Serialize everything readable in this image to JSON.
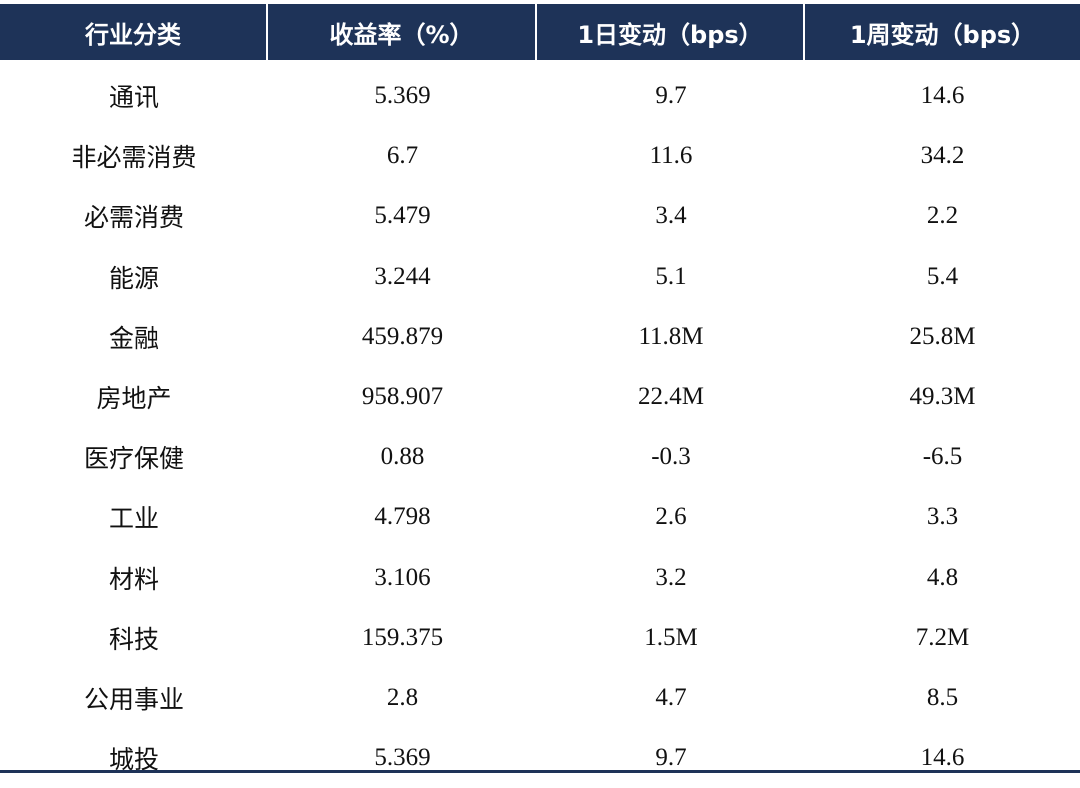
{
  "chart_data": {
    "type": "table",
    "columns": [
      "行业分类",
      "收益率（%）",
      "1日变动（bps）",
      "1周变动（bps）"
    ],
    "rows": [
      {
        "category": "通讯",
        "yield": "5.369",
        "change_1d": "9.7",
        "change_1w": "14.6"
      },
      {
        "category": "非必需消费",
        "yield": "6.7",
        "change_1d": "11.6",
        "change_1w": "34.2"
      },
      {
        "category": "必需消费",
        "yield": "5.479",
        "change_1d": "3.4",
        "change_1w": "2.2"
      },
      {
        "category": "能源",
        "yield": "3.244",
        "change_1d": "5.1",
        "change_1w": "5.4"
      },
      {
        "category": "金融",
        "yield": "459.879",
        "change_1d": "11.8M",
        "change_1w": "25.8M"
      },
      {
        "category": "房地产",
        "yield": "958.907",
        "change_1d": "22.4M",
        "change_1w": "49.3M"
      },
      {
        "category": "医疗保健",
        "yield": "0.88",
        "change_1d": "-0.3",
        "change_1w": "-6.5"
      },
      {
        "category": "工业",
        "yield": "4.798",
        "change_1d": "2.6",
        "change_1w": "3.3"
      },
      {
        "category": "材料",
        "yield": "3.106",
        "change_1d": "3.2",
        "change_1w": "4.8"
      },
      {
        "category": "科技",
        "yield": "159.375",
        "change_1d": "1.5M",
        "change_1w": "7.2M"
      },
      {
        "category": "公用事业",
        "yield": "2.8",
        "change_1d": "4.7",
        "change_1w": "8.5"
      },
      {
        "category": "城投",
        "yield": "5.369",
        "change_1d": "9.7",
        "change_1w": "14.6"
      }
    ]
  },
  "colors": {
    "header_bg": "#1e3358",
    "header_text": "#ffffff",
    "body_text": "#111111",
    "rule": "#1e3358"
  }
}
